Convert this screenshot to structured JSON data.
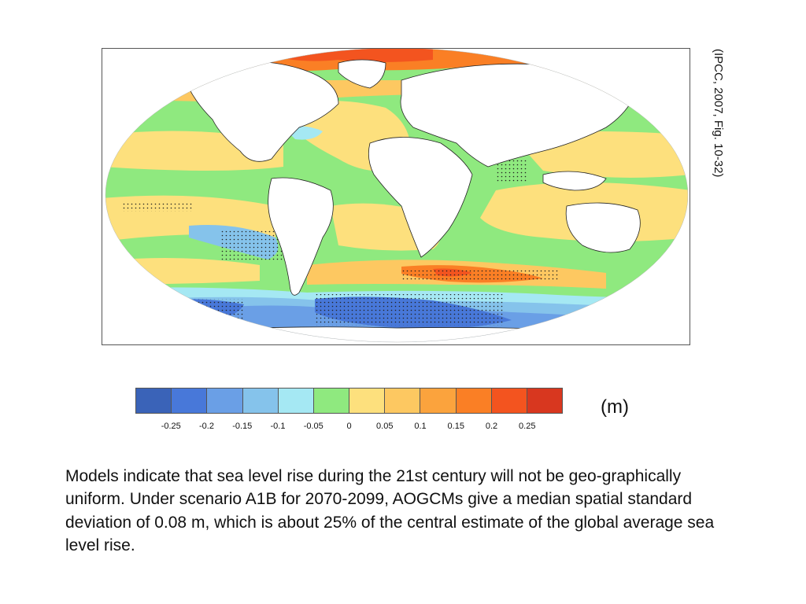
{
  "figure": {
    "citation": "(IPCC, 2007, Fig. 10-32)",
    "unit_label": "(m)",
    "colorbar": {
      "colors": [
        "#3a63b8",
        "#4878d9",
        "#6a9fe6",
        "#85c3eb",
        "#a5e8f3",
        "#8fe97f",
        "#fde07d",
        "#fdc861",
        "#fba33d",
        "#fa7f25",
        "#f3541f",
        "#d8371f"
      ],
      "tick_labels": [
        "-0.25",
        "-0.2",
        "-0.15",
        "-0.1",
        "-0.05",
        "0",
        "0.05",
        "0.1",
        "0.15",
        "0.2",
        "0.25"
      ]
    },
    "map_colors": {
      "land": "#ffffff",
      "coast": "#222222",
      "ocean_base": "#8fe97f",
      "rise_low": "#fde07d",
      "rise_mid": "#fdc861",
      "rise_high": "#fa7f25",
      "rise_max": "#f3541f",
      "fall_low": "#a5e8f3",
      "fall_mid": "#85c3eb",
      "fall_high": "#6a9fe6",
      "fall_max": "#4878d9"
    }
  },
  "caption": "Models indicate that sea level rise during the 21st century will not be geo-graphically uniform. Under scenario A1B for 2070-2099, AOGCMs give a median spatial standard deviation of 0.08 m, which is about 25% of the central estimate of the global average sea level rise."
}
